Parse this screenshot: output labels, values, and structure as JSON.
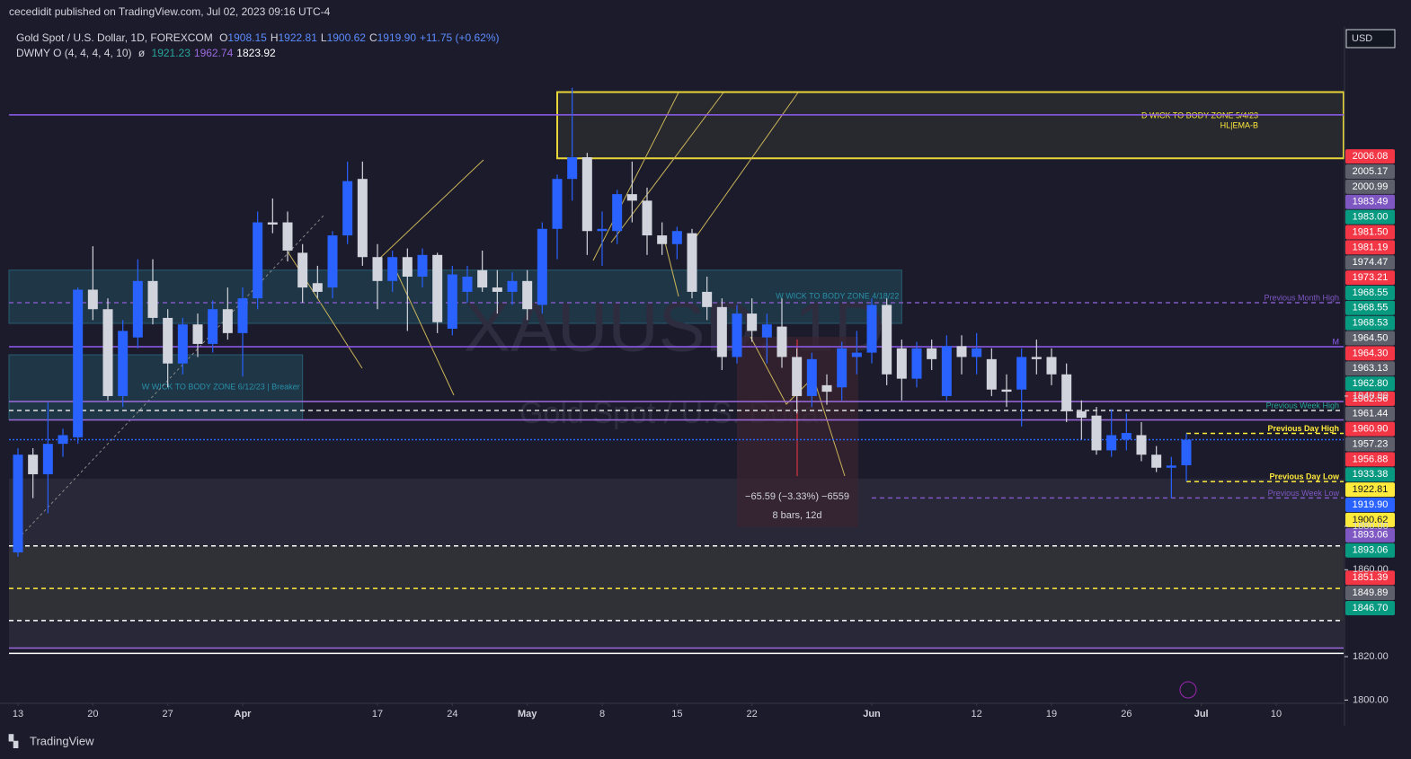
{
  "header": {
    "publisher": "cecedidit published on TradingView.com, Jul 02, 2023 09:16 UTC-4",
    "footer": "TradingView"
  },
  "chart_data": {
    "type": "candlestick",
    "symbol": "Gold Spot / U.S. Dollar, 1D, FOREXCOM",
    "ohlc_legend": [
      {
        "key": "O",
        "value": "1908.15"
      },
      {
        "key": "H",
        "value": "1922.81"
      },
      {
        "key": "L",
        "value": "1900.62"
      },
      {
        "key": "C",
        "value": "1919.90"
      }
    ],
    "change": "+11.75 (+0.62%)",
    "indicator": {
      "name": "DWMY O (4, 4, 4, 4, 10)",
      "symbol": "ø",
      "values": [
        {
          "text": "1921.23",
          "color": "#26a69a"
        },
        {
          "text": "1962.74",
          "color": "#9c6ade"
        },
        {
          "text": "1823.92",
          "color": "#ffffff"
        }
      ]
    },
    "watermark": [
      "XAUUSD, 1D",
      "Gold Spot / U.S. Dollar"
    ],
    "currency": "USD",
    "up_color": "#2962ff",
    "down_color": "#d1d4dc",
    "open": [
      1868,
      1913,
      1904,
      1918,
      1921,
      1989,
      1980,
      1940,
      1967,
      1993,
      1976,
      1955,
      1973,
      1964,
      1980,
      1969,
      1985,
      2020,
      2020,
      2006,
      1992,
      1990,
      2014,
      2040,
      2004,
      1993,
      2004,
      1995,
      2005,
      1971,
      1988,
      1998,
      1990,
      1988,
      1993,
      1982,
      2017,
      2040,
      2050,
      2016,
      2016,
      2033,
      2030,
      2014,
      2010,
      2015,
      1988,
      1981,
      1958,
      1978,
      1967,
      1972,
      1958,
      1940,
      1945,
      1944,
      1958,
      1960,
      1982,
      1962,
      1948,
      1962,
      1940,
      1963,
      1958,
      1957,
      1943,
      1943,
      1958,
      1958,
      1950,
      1933,
      1931,
      1915,
      1920,
      1922,
      1913,
      1907,
      1908.15
    ],
    "high": [
      1916,
      1916,
      1937,
      1925,
      1990,
      2009,
      1985,
      1975,
      2003,
      2003,
      1980,
      1976,
      1978,
      1984,
      1990,
      1990,
      2025,
      2031,
      2025,
      2010,
      2000,
      2016,
      2048,
      2048,
      2010,
      2007,
      2008,
      2008,
      2006,
      2000,
      2000,
      2007,
      1998,
      1997,
      1998,
      2020,
      2042,
      2082,
      2052,
      2025,
      2035,
      2048,
      2036,
      2020,
      2018,
      2017,
      1995,
      1985,
      1982,
      1985,
      1978,
      1985,
      1962,
      1960,
      1950,
      1965,
      1970,
      1985,
      1985,
      1966,
      1965,
      1966,
      1968,
      1968,
      1969,
      1962,
      1950,
      1962,
      1966,
      1962,
      1955,
      1938,
      1935,
      1934,
      1932,
      1928,
      1917,
      1912,
      1922.81
    ],
    "low": [
      1866,
      1893,
      1886,
      1912,
      1918,
      1975,
      1938,
      1935,
      1962,
      1973,
      1944,
      1950,
      1958,
      1960,
      1966,
      1949,
      1980,
      2015,
      2002,
      1983,
      1985,
      1985,
      2010,
      2000,
      1980,
      1988,
      1970,
      1990,
      1969,
      1968,
      1983,
      1988,
      1978,
      1982,
      1975,
      1978,
      2003,
      2030,
      2005,
      2000,
      2010,
      2020,
      2005,
      2005,
      2003,
      1985,
      1975,
      1952,
      1955,
      1965,
      1955,
      1953,
      1932,
      1935,
      1936,
      1938,
      1950,
      1955,
      1945,
      1938,
      1944,
      1952,
      1938,
      1950,
      1950,
      1940,
      1935,
      1926,
      1950,
      1945,
      1928,
      1920,
      1913,
      1912,
      1915,
      1910,
      1905,
      1893,
      1900.62
    ],
    "close": [
      1913,
      1904,
      1918,
      1922,
      1989,
      1980,
      1940,
      1970,
      1993,
      1976,
      1955,
      1973,
      1964,
      1980,
      1969,
      1985,
      2020,
      2019,
      2007,
      1990,
      1988,
      2014,
      2039,
      2004,
      1993,
      2004,
      1995,
      2005,
      1974,
      1996,
      1995,
      1990,
      1988,
      1993,
      1980,
      2017,
      2040,
      2050,
      2016,
      2017,
      2033,
      2030,
      2014,
      2010,
      2016,
      1988,
      1981,
      1958,
      1978,
      1970,
      1973,
      1958,
      1940,
      1957,
      1942,
      1962,
      1960,
      1982,
      1950,
      1948,
      1962,
      1957,
      1963,
      1958,
      1962,
      1943,
      1942,
      1958,
      1957,
      1950,
      1933,
      1930,
      1915,
      1922,
      1923,
      1913,
      1907,
      1908,
      1919.9
    ],
    "xlim": [
      -0.6,
      88.5
    ],
    "xticks": [
      {
        "value": 0,
        "label": "13"
      },
      {
        "value": 5,
        "label": "20"
      },
      {
        "value": 10,
        "label": "27"
      },
      {
        "value": 15,
        "label": "Apr"
      },
      {
        "value": 24,
        "label": "17"
      },
      {
        "value": 29,
        "label": "24"
      },
      {
        "value": 34,
        "label": "May"
      },
      {
        "value": 39,
        "label": "8"
      },
      {
        "value": 44,
        "label": "15"
      },
      {
        "value": 49,
        "label": "22"
      },
      {
        "value": 57,
        "label": "Jun"
      },
      {
        "value": 64,
        "label": "12"
      },
      {
        "value": 69,
        "label": "19"
      },
      {
        "value": 74,
        "label": "26"
      },
      {
        "value": 79,
        "label": "Jul"
      },
      {
        "value": 84,
        "label": "10"
      }
    ],
    "ylim": [
      1798.5,
      2110
    ],
    "yticks": [
      {
        "value": 1940,
        "label": "1940.00"
      },
      {
        "value": 1880,
        "label": "1880.00"
      },
      {
        "value": 1860,
        "label": "1860.00"
      },
      {
        "value": 1820,
        "label": "1820.00"
      },
      {
        "value": 1800,
        "label": "1800.00"
      }
    ],
    "zones": [
      {
        "top": 1902,
        "bottom": 1871,
        "start": -0.6,
        "end": 88.5,
        "fill": "#2a2a3a"
      },
      {
        "top": 1871,
        "bottom": 1836.6,
        "start": -0.6,
        "end": 88.5,
        "fill": "#333339"
      },
      {
        "top": 1836.6,
        "bottom": 1823.9,
        "start": -0.6,
        "end": 88.5,
        "fill": "#2a2a3a"
      },
      {
        "top": 2080,
        "bottom": 2049.5,
        "start": 36,
        "end": 88.5,
        "fill": "#2a2a30",
        "stroke": "#ffeb3b",
        "labels": [
          "D WICK TO BODY ZONE 5/4/23",
          "HL|EMA-B"
        ],
        "label_color": "#ffeb3b"
      },
      {
        "top": 1998,
        "bottom": 1973.5,
        "start": -0.6,
        "end": 59,
        "fill": "#1f3a4a",
        "stroke": "#2a6478",
        "labels": [
          "W WICK TO BODY ZONE 4/18/22"
        ],
        "label_color": "#2a8fa8"
      },
      {
        "top": 1959,
        "bottom": 1929,
        "start": -0.6,
        "end": 19,
        "fill": "#1f3a4a",
        "stroke": "#2a6478",
        "labels": [
          "W WICK TO BODY ZONE 6/12/23 | Breaker"
        ],
        "label_color": "#2a8fa8"
      }
    ],
    "levels": [
      {
        "value": 2069.5,
        "color": "#8e5cf0",
        "dash": "none"
      },
      {
        "value": 1983.0,
        "color": "#7e57c2",
        "dash": "5 4",
        "label": "Previous Month High"
      },
      {
        "value": 1962.74,
        "color": "#8e5cf0",
        "dash": "none",
        "label": "M"
      },
      {
        "value": 1937.5,
        "color": "#9c6ade",
        "dash": "none"
      },
      {
        "value": 1933.38,
        "color": "#e0e0e0",
        "dash": "5 4",
        "label": "Previous Week High",
        "label_color": "#26a69a"
      },
      {
        "value": 1929,
        "color": "#9c6ade",
        "dash": "none"
      },
      {
        "value": 1922.81,
        "color": "#ffeb3b",
        "dash": "5 4",
        "start": 78,
        "label": "Previous Day High"
      },
      {
        "value": 1919.9,
        "color": "#2962ff",
        "dash": "2 2"
      },
      {
        "value": 1900.62,
        "color": "#ffeb3b",
        "dash": "5 4",
        "start": 78,
        "label": "Previous Day Low"
      },
      {
        "value": 1893.06,
        "color": "#7e57c2",
        "dash": "5 4",
        "start": 57,
        "label": "Previous Week Low"
      },
      {
        "value": 1871,
        "color": "#ffffff",
        "dash": "5 4"
      },
      {
        "value": 1851.39,
        "color": "#ffeb3b",
        "dash": "5 4"
      },
      {
        "value": 1836.6,
        "color": "#ffffff",
        "dash": "5 4"
      },
      {
        "value": 1823.92,
        "color": "#9c6ade",
        "dash": "none"
      },
      {
        "value": 1821.5,
        "color": "#ffffff",
        "dash": "none"
      }
    ],
    "price_tags": [
      {
        "value": 2006.08,
        "color": "#f23645"
      },
      {
        "value": 2005.17,
        "color": "#5d606b"
      },
      {
        "value": 2000.99,
        "color": "#5d606b"
      },
      {
        "value": 1983.49,
        "color": "#7e57c2"
      },
      {
        "value": 1983,
        "label": "1983.00",
        "color": "#089981"
      },
      {
        "value": 1981.5,
        "label": "1981.50",
        "color": "#f23645"
      },
      {
        "value": 1981.19,
        "color": "#f23645"
      },
      {
        "value": 1974.47,
        "color": "#5d606b"
      },
      {
        "value": 1973.21,
        "color": "#f23645"
      },
      {
        "value": 1968.55,
        "color": "#089981"
      },
      {
        "value": 1968.55,
        "color": "#089981"
      },
      {
        "value": 1968.53,
        "color": "#089981"
      },
      {
        "value": 1964.5,
        "label": "1964.50",
        "color": "#5d606b"
      },
      {
        "value": 1964.3,
        "label": "1964.30",
        "color": "#f23645"
      },
      {
        "value": 1963.13,
        "color": "#5d606b"
      },
      {
        "value": 1962.8,
        "label": "1962.80",
        "color": "#089981"
      },
      {
        "value": 1962.56,
        "color": "#f23645"
      },
      {
        "value": 1961.44,
        "color": "#5d606b"
      },
      {
        "value": 1960.9,
        "label": "1960.90",
        "color": "#f23645"
      },
      {
        "value": 1957.23,
        "color": "#5d606b"
      },
      {
        "value": 1956.88,
        "color": "#f23645"
      },
      {
        "value": 1933.38,
        "color": "#089981"
      },
      {
        "value": 1922.81,
        "color": "#ffeb3b",
        "text_color": "#131722"
      },
      {
        "value": 1919.9,
        "label": "1919.90",
        "color": "#2962ff"
      },
      {
        "value": 1900.62,
        "color": "#ffeb3b",
        "text_color": "#131722"
      },
      {
        "value": 1893.06,
        "color": "#7e57c2"
      },
      {
        "value": 1893.06,
        "color": "#089981"
      },
      {
        "value": 1851.39,
        "color": "#f23645"
      },
      {
        "value": 1849.89,
        "color": "#5d606b"
      },
      {
        "value": 1846.7,
        "label": "1846.70",
        "color": "#089981"
      }
    ],
    "measure": [
      "−65.59 (−3.33%) −6559",
      "8 bars, 12d"
    ]
  }
}
